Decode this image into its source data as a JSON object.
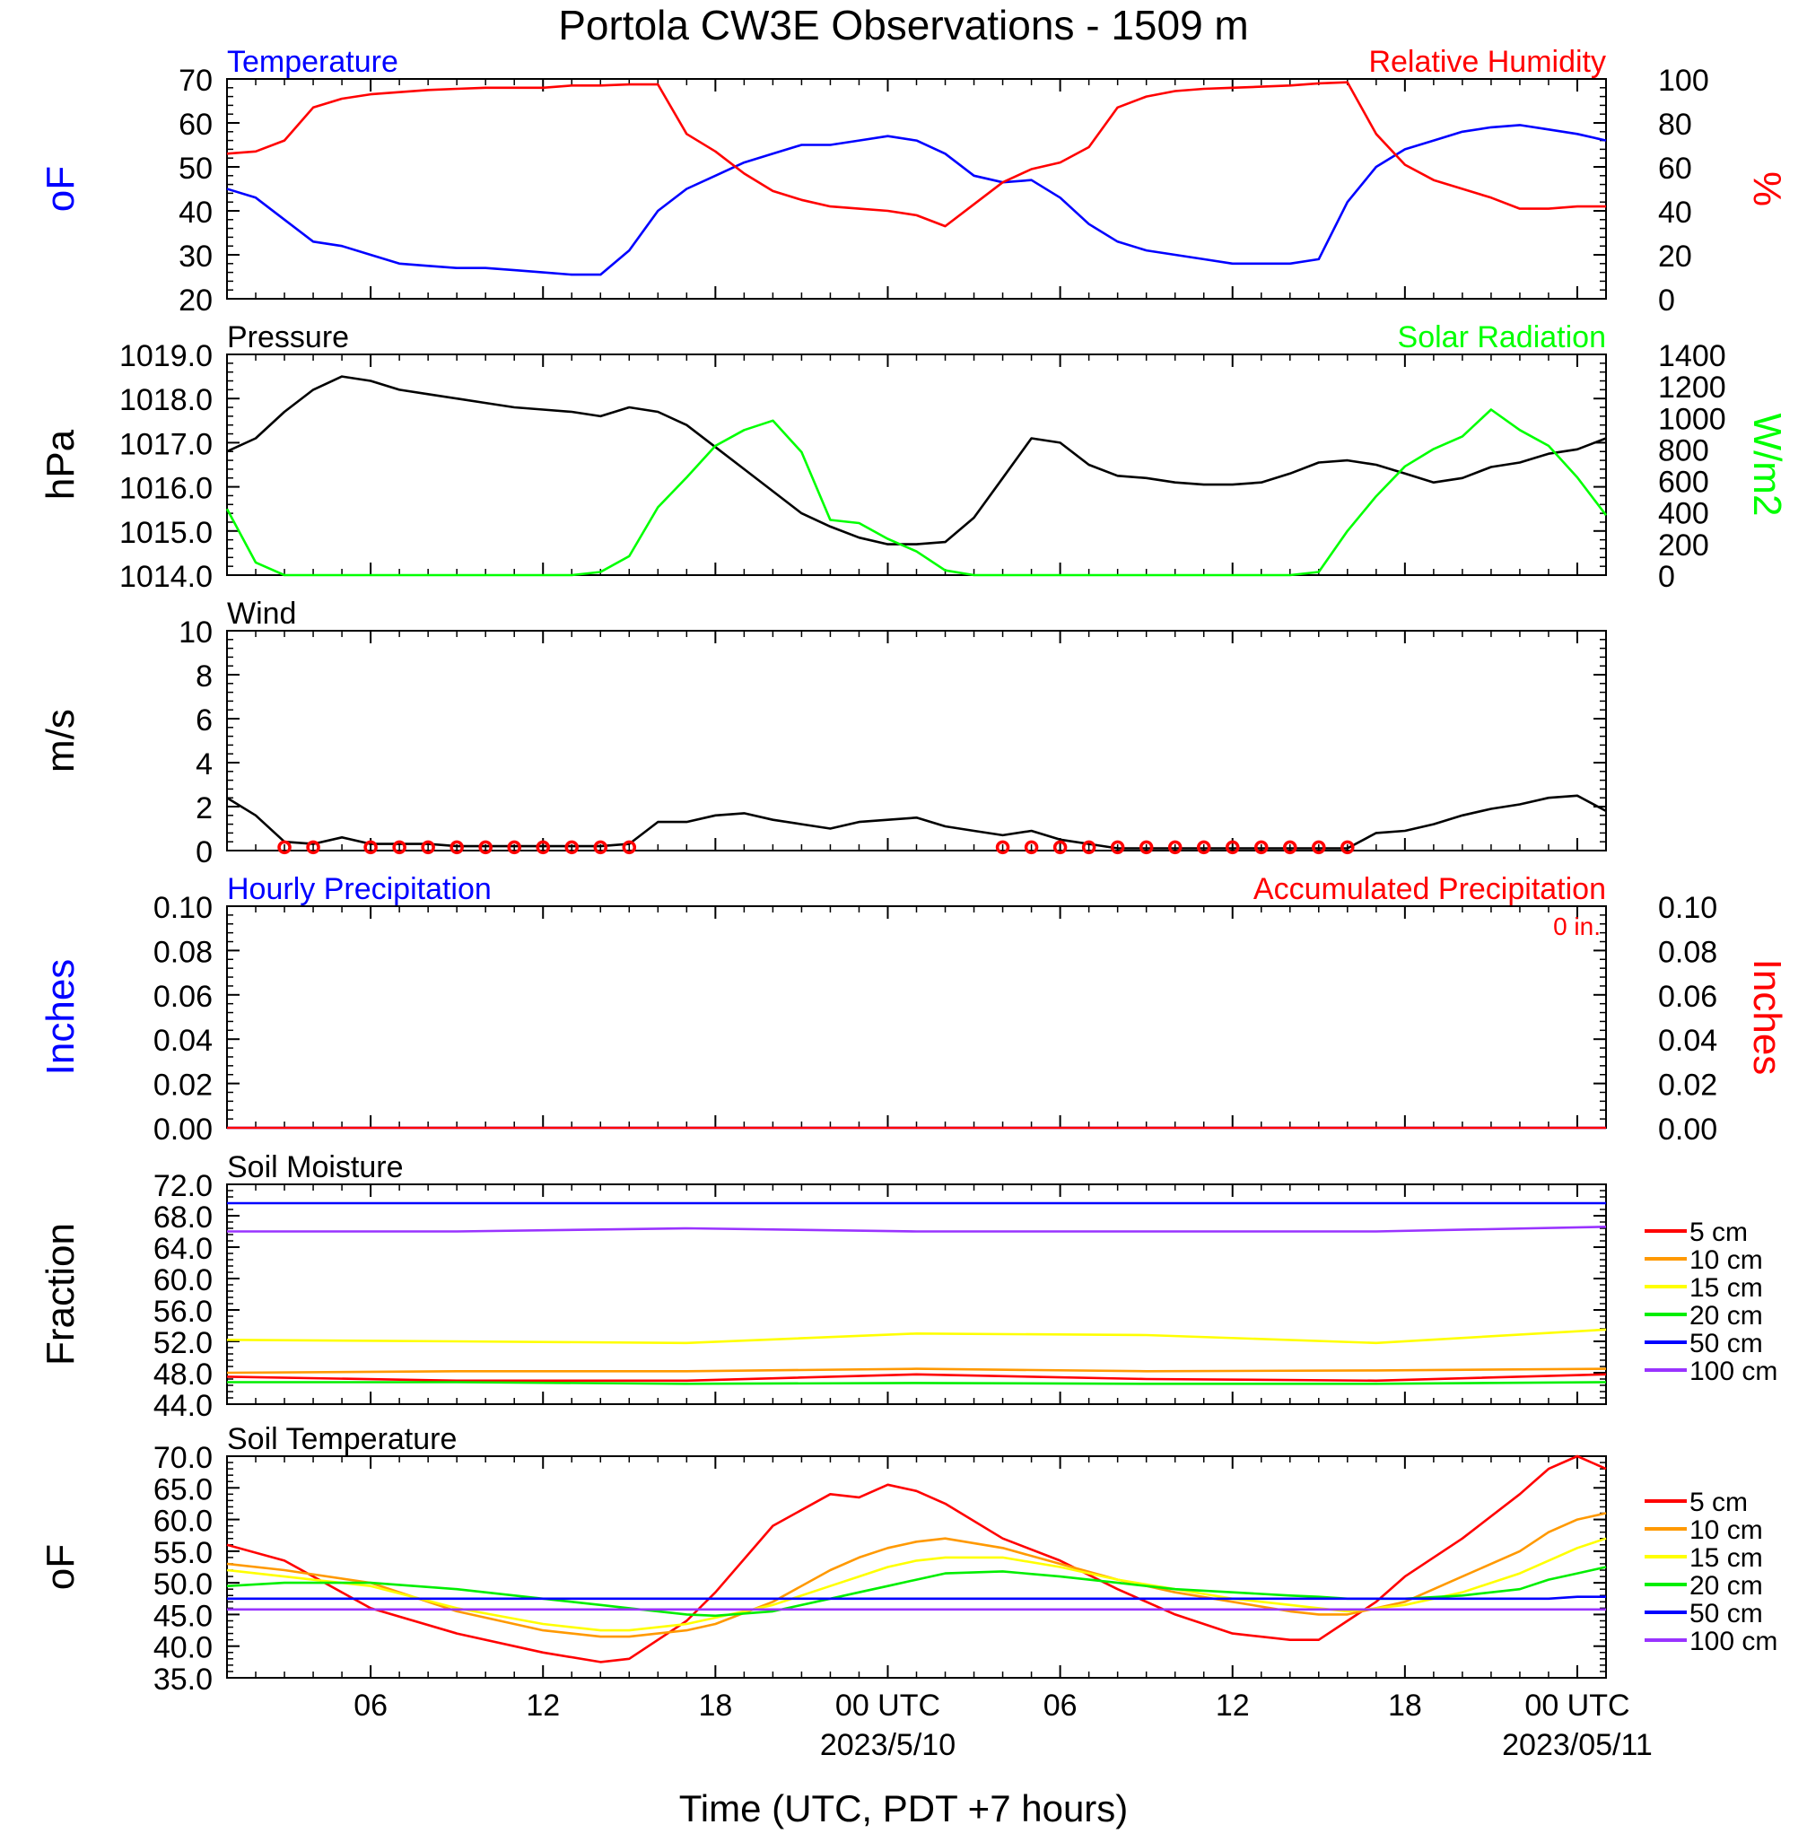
{
  "title": "Portola CW3E Observations - 1509 m",
  "xlabel": "Time (UTC, PDT +7 hours)",
  "x_axis": {
    "ticks": [
      {
        "hour": 6,
        "label": "06"
      },
      {
        "hour": 12,
        "label": "12"
      },
      {
        "hour": 18,
        "label": "18"
      },
      {
        "hour": 24,
        "label": "00 UTC",
        "sublabel": "2023/5/10"
      },
      {
        "hour": 30,
        "label": "06"
      },
      {
        "hour": 36,
        "label": "12"
      },
      {
        "hour": 42,
        "label": "18"
      },
      {
        "hour": 48,
        "label": "00 UTC",
        "sublabel": "2023/05/11"
      }
    ],
    "range_hours": [
      1,
      49
    ]
  },
  "chart_data": [
    {
      "type": "line",
      "panel": "temperature-humidity",
      "left_title": "Temperature",
      "right_title": "Relative Humidity",
      "ylabel": "oF",
      "ylabel_right": "%",
      "ylim": [
        20,
        70
      ],
      "ylim_right": [
        0,
        100
      ],
      "yticks": [
        "20",
        "30",
        "40",
        "50",
        "60",
        "70"
      ],
      "yticks_right": [
        "0",
        "20",
        "40",
        "60",
        "80",
        "100"
      ],
      "x_hours": [
        1,
        2,
        3,
        4,
        5,
        6,
        7,
        8,
        9,
        10,
        11,
        12,
        13,
        14,
        15,
        16,
        17,
        18,
        19,
        20,
        21,
        22,
        23,
        24,
        25,
        26,
        27,
        28,
        29,
        30,
        31,
        32,
        33,
        34,
        35,
        36,
        37,
        38,
        39,
        40,
        41,
        42,
        43,
        44,
        45,
        46,
        47,
        48,
        49
      ],
      "series": [
        {
          "name": "Temperature",
          "axis": "left",
          "color": "#0000ff",
          "values": [
            45,
            43,
            38,
            33,
            32,
            30,
            28,
            27.5,
            27,
            27,
            26.5,
            26,
            25.5,
            25.5,
            31,
            40,
            45,
            48,
            51,
            53,
            55,
            55,
            56,
            57,
            56,
            53,
            48,
            46.5,
            47,
            43,
            37,
            33,
            31,
            30,
            29,
            28,
            28,
            28,
            29,
            42,
            50,
            54,
            56,
            58,
            59,
            59.5,
            58.5,
            57.5,
            56
          ]
        },
        {
          "name": "Relative Humidity",
          "axis": "right",
          "color": "#ff0000",
          "values": [
            66,
            67,
            72,
            87,
            91,
            93,
            94,
            95,
            95.5,
            96,
            96,
            96,
            97,
            97,
            97.5,
            97.5,
            75,
            67,
            57,
            49,
            45,
            42,
            41,
            40,
            38,
            33,
            43,
            53,
            59,
            62,
            69,
            87,
            92,
            94.5,
            95.5,
            96,
            96.5,
            97,
            98,
            98.5,
            75,
            61,
            54,
            50,
            46,
            41,
            41,
            42,
            42
          ]
        }
      ]
    },
    {
      "type": "line",
      "panel": "pressure-solar",
      "left_title": "Pressure",
      "right_title": "Solar Radiation",
      "ylabel": "hPa",
      "ylabel_right": "W/m2",
      "ylim": [
        1014,
        1019
      ],
      "ylim_right": [
        0,
        1400
      ],
      "yticks": [
        "1014.0",
        "1015.0",
        "1016.0",
        "1017.0",
        "1018.0",
        "1019.0"
      ],
      "yticks_right": [
        "0",
        "200",
        "400",
        "600",
        "800",
        "1000",
        "1200",
        "1400"
      ],
      "x_hours": [
        1,
        2,
        3,
        4,
        5,
        6,
        7,
        8,
        9,
        10,
        11,
        12,
        13,
        14,
        15,
        16,
        17,
        18,
        19,
        20,
        21,
        22,
        23,
        24,
        25,
        26,
        27,
        28,
        29,
        30,
        31,
        32,
        33,
        34,
        35,
        36,
        37,
        38,
        39,
        40,
        41,
        42,
        43,
        44,
        45,
        46,
        47,
        48,
        49
      ],
      "series": [
        {
          "name": "Pressure",
          "axis": "left",
          "color": "#000000",
          "values": [
            1016.8,
            1017.1,
            1017.7,
            1018.2,
            1018.5,
            1018.4,
            1018.2,
            1018.1,
            1018.0,
            1017.9,
            1017.8,
            1017.75,
            1017.7,
            1017.6,
            1017.8,
            1017.7,
            1017.4,
            1016.9,
            1016.4,
            1015.9,
            1015.4,
            1015.1,
            1014.85,
            1014.7,
            1014.7,
            1014.75,
            1015.3,
            1016.2,
            1017.1,
            1017.0,
            1016.5,
            1016.25,
            1016.2,
            1016.1,
            1016.05,
            1016.05,
            1016.1,
            1016.3,
            1016.55,
            1016.6,
            1016.5,
            1016.3,
            1016.1,
            1016.2,
            1016.45,
            1016.55,
            1016.75,
            1016.85,
            1017.1
          ]
        },
        {
          "name": "Solar Radiation",
          "axis": "right",
          "color": "#00ff00",
          "values": [
            420,
            80,
            0,
            0,
            0,
            0,
            0,
            0,
            0,
            0,
            0,
            0,
            0,
            20,
            120,
            430,
            620,
            820,
            920,
            980,
            780,
            350,
            330,
            230,
            150,
            30,
            0,
            0,
            0,
            0,
            0,
            0,
            0,
            0,
            0,
            0,
            0,
            0,
            20,
            280,
            500,
            690,
            800,
            880,
            1050,
            920,
            820,
            620,
            380
          ]
        }
      ]
    },
    {
      "type": "line",
      "panel": "wind",
      "left_title": "Wind",
      "ylabel": "m/s",
      "ylim": [
        0,
        10
      ],
      "yticks": [
        "0",
        "2",
        "4",
        "6",
        "8",
        "10"
      ],
      "x_hours": [
        1,
        2,
        3,
        4,
        5,
        6,
        7,
        8,
        9,
        10,
        11,
        12,
        13,
        14,
        15,
        16,
        17,
        18,
        19,
        20,
        21,
        22,
        23,
        24,
        25,
        26,
        27,
        28,
        29,
        30,
        31,
        32,
        33,
        34,
        35,
        36,
        37,
        38,
        39,
        40,
        41,
        42,
        43,
        44,
        45,
        46,
        47,
        48,
        49
      ],
      "series": [
        {
          "name": "Wind Speed",
          "axis": "left",
          "color": "#000000",
          "values": [
            2.4,
            1.6,
            0.4,
            0.3,
            0.6,
            0.3,
            0.3,
            0.3,
            0.2,
            0.2,
            0.2,
            0.2,
            0.2,
            0.2,
            0.3,
            1.3,
            1.3,
            1.6,
            1.7,
            1.4,
            1.2,
            1.0,
            1.3,
            1.4,
            1.5,
            1.1,
            0.9,
            0.7,
            0.9,
            0.5,
            0.3,
            0.1,
            0.1,
            0.1,
            0.1,
            0.1,
            0.1,
            0.1,
            0.1,
            0.1,
            0.8,
            0.9,
            1.2,
            1.6,
            1.9,
            2.1,
            2.4,
            2.5,
            1.8
          ]
        }
      ],
      "calm_marker_hours": [
        3,
        4,
        6,
        7,
        8,
        9,
        10,
        11,
        12,
        13,
        14,
        15,
        28,
        29,
        30,
        31,
        32,
        33,
        34,
        35,
        36,
        37,
        38,
        39,
        40
      ]
    },
    {
      "type": "line",
      "panel": "precipitation",
      "left_title": "Hourly Precipitation",
      "right_title": "Accumulated Precipitation",
      "annotation": "0 in.",
      "ylabel": "Inches",
      "ylabel_right": "Inches",
      "ylim": [
        0,
        0.1
      ],
      "ylim_right": [
        0,
        0.1
      ],
      "yticks": [
        "0.00",
        "0.02",
        "0.04",
        "0.06",
        "0.08",
        "0.10"
      ],
      "yticks_right": [
        "0.00",
        "0.02",
        "0.04",
        "0.06",
        "0.08",
        "0.10"
      ],
      "x_hours": [
        1,
        49
      ],
      "series": [
        {
          "name": "Hourly Precipitation",
          "axis": "left",
          "color": "#0000ff",
          "values": [
            0,
            0
          ]
        },
        {
          "name": "Accumulated Precipitation",
          "axis": "right",
          "color": "#ff0000",
          "values": [
            0,
            0
          ]
        }
      ]
    },
    {
      "type": "line",
      "panel": "soil-moisture",
      "left_title": "Soil Moisture",
      "ylabel": "Fraction",
      "ylim": [
        44,
        72
      ],
      "yticks": [
        "44.0",
        "48.0",
        "52.0",
        "56.0",
        "60.0",
        "64.0",
        "68.0",
        "72.0"
      ],
      "x_hours": [
        1,
        9,
        17,
        25,
        33,
        41,
        49
      ],
      "series": [
        {
          "name": "5 cm",
          "color": "#ff0000",
          "values": [
            47.5,
            47.0,
            47.0,
            47.8,
            47.2,
            47.0,
            47.8
          ]
        },
        {
          "name": "10 cm",
          "color": "#ff9900",
          "values": [
            48.0,
            48.2,
            48.2,
            48.5,
            48.2,
            48.3,
            48.5
          ]
        },
        {
          "name": "15 cm",
          "color": "#ffff00",
          "values": [
            52.2,
            52.0,
            51.8,
            53.0,
            52.8,
            51.8,
            53.5
          ]
        },
        {
          "name": "20 cm",
          "color": "#00ee00",
          "values": [
            46.8,
            46.8,
            46.6,
            46.7,
            46.6,
            46.6,
            46.8
          ]
        },
        {
          "name": "50 cm",
          "color": "#0000ff",
          "values": [
            69.6,
            69.6,
            69.6,
            69.6,
            69.6,
            69.6,
            69.6
          ]
        },
        {
          "name": "100 cm",
          "color": "#9933ff",
          "values": [
            66.0,
            66.0,
            66.4,
            66.0,
            66.0,
            66.0,
            66.6
          ]
        }
      ]
    },
    {
      "type": "line",
      "panel": "soil-temperature",
      "left_title": "Soil Temperature",
      "ylabel": "oF",
      "ylim": [
        35,
        70
      ],
      "yticks": [
        "35.0",
        "40.0",
        "45.0",
        "50.0",
        "55.0",
        "60.0",
        "65.0",
        "70.0"
      ],
      "x_hours": [
        1,
        3,
        6,
        9,
        12,
        14,
        15,
        17,
        18,
        20,
        22,
        23,
        24,
        25,
        26,
        28,
        30,
        32,
        34,
        36,
        38,
        39,
        40,
        41,
        42,
        44,
        46,
        47,
        48,
        49
      ],
      "series": [
        {
          "name": "5 cm",
          "color": "#ff0000",
          "values": [
            56,
            53.5,
            46,
            42,
            39,
            37.5,
            38,
            44,
            48.5,
            59,
            64,
            63.5,
            65.5,
            64.5,
            62.5,
            57,
            53.5,
            49,
            45,
            42,
            41,
            41,
            44,
            47,
            51,
            57,
            64,
            68,
            70,
            68
          ]
        },
        {
          "name": "10 cm",
          "color": "#ff9900",
          "values": [
            53,
            52,
            50,
            45.5,
            42.5,
            41.5,
            41.5,
            42.5,
            43.5,
            47,
            52,
            54,
            55.5,
            56.5,
            57,
            55.5,
            53,
            50.5,
            48.5,
            47,
            45.5,
            45,
            45,
            46,
            47,
            51,
            55,
            58,
            60,
            61
          ]
        },
        {
          "name": "15 cm",
          "color": "#ffff00",
          "values": [
            52,
            51,
            49.5,
            46,
            43.5,
            42.5,
            42.5,
            43.5,
            44.5,
            46.5,
            49.5,
            51,
            52.5,
            53.5,
            54,
            54,
            52.5,
            50.5,
            49,
            47.5,
            46.5,
            46,
            45.5,
            46,
            46.5,
            48.5,
            51.5,
            53.5,
            55.5,
            57
          ]
        },
        {
          "name": "20 cm",
          "color": "#00ee00",
          "values": [
            49.5,
            50,
            50,
            49,
            47.5,
            46.5,
            46,
            45,
            44.8,
            45.5,
            47.5,
            48.5,
            49.5,
            50.5,
            51.5,
            51.8,
            51,
            50,
            49,
            48.5,
            48,
            47.8,
            47.5,
            47.5,
            47.5,
            48,
            49,
            50.5,
            51.5,
            52.5
          ]
        },
        {
          "name": "50 cm",
          "color": "#0000ff",
          "values": [
            47.5,
            47.5,
            47.5,
            47.5,
            47.5,
            47.5,
            47.5,
            47.5,
            47.5,
            47.5,
            47.5,
            47.5,
            47.5,
            47.5,
            47.5,
            47.5,
            47.5,
            47.5,
            47.5,
            47.5,
            47.5,
            47.5,
            47.5,
            47.5,
            47.5,
            47.5,
            47.5,
            47.5,
            47.8,
            47.8
          ]
        },
        {
          "name": "100 cm",
          "color": "#9933ff",
          "values": [
            45.8,
            45.8,
            45.8,
            45.8,
            45.8,
            45.8,
            45.8,
            45.8,
            45.8,
            45.8,
            45.8,
            45.8,
            45.8,
            45.8,
            45.8,
            45.8,
            45.8,
            45.8,
            45.8,
            45.8,
            45.8,
            45.8,
            45.8,
            45.8,
            45.8,
            45.8,
            45.8,
            45.8,
            45.8,
            45.8
          ]
        }
      ]
    }
  ]
}
